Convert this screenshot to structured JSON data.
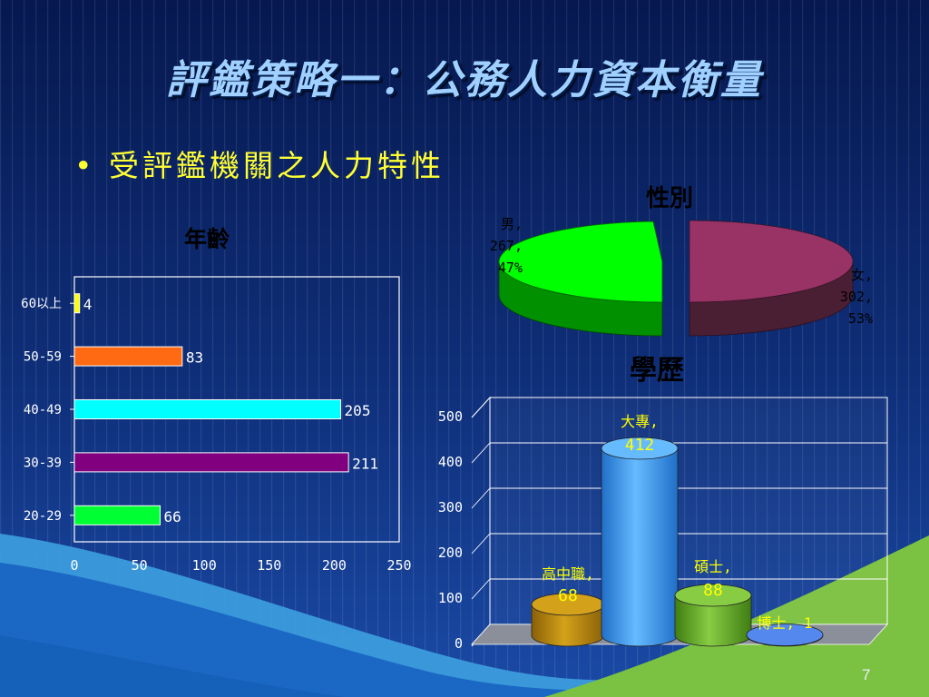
{
  "slide": {
    "title": "評鑑策略一：公務人力資本衡量",
    "bullet": "受評鑑機關之人力特性",
    "page_number": "7"
  },
  "colors": {
    "bg_dark": "#06184f",
    "bg_mid": "#123a8a",
    "title": "#9fd0ff",
    "bullet": "#ffff33",
    "edu_label": "#ffff00"
  },
  "chart_data": [
    {
      "type": "bar",
      "orientation": "horizontal",
      "title": "年齡",
      "categories": [
        "20-29",
        "30-39",
        "40-49",
        "50-59",
        "60以上"
      ],
      "values": [
        66,
        211,
        205,
        83,
        4
      ],
      "colors": [
        "#00ff33",
        "#800080",
        "#00ffff",
        "#ff6a13",
        "#ffff00"
      ],
      "xlim": [
        0,
        250
      ],
      "xticks": [
        "0",
        "50",
        "100",
        "150",
        "200",
        "250"
      ],
      "grid": false
    },
    {
      "type": "pie",
      "title": "性別",
      "slices": [
        {
          "label": "男",
          "value": 267,
          "pct": "47%",
          "color": "#00ff00",
          "label_lines": [
            "男,",
            "267,",
            "47%"
          ]
        },
        {
          "label": "女",
          "value": 302,
          "pct": "53%",
          "color": "#993366",
          "label_lines": [
            "女,",
            "302,",
            "53%"
          ]
        }
      ]
    },
    {
      "type": "bar",
      "style": "3d-cylinder",
      "title": "學歷",
      "categories": [
        "高中職",
        "大專",
        "碩士",
        "博士"
      ],
      "values": [
        68,
        412,
        88,
        1
      ],
      "colors": [
        "#b8860b",
        "#3399ff",
        "#66aa22",
        "#3366cc"
      ],
      "labels": [
        [
          "高中職,",
          "68"
        ],
        [
          "大專,",
          "412"
        ],
        [
          "碩士,",
          "88"
        ],
        [
          "博士, 1"
        ]
      ],
      "ylim": [
        0,
        500
      ],
      "yticks": [
        "0",
        "100",
        "200",
        "300",
        "400",
        "500"
      ],
      "grid": true
    }
  ]
}
